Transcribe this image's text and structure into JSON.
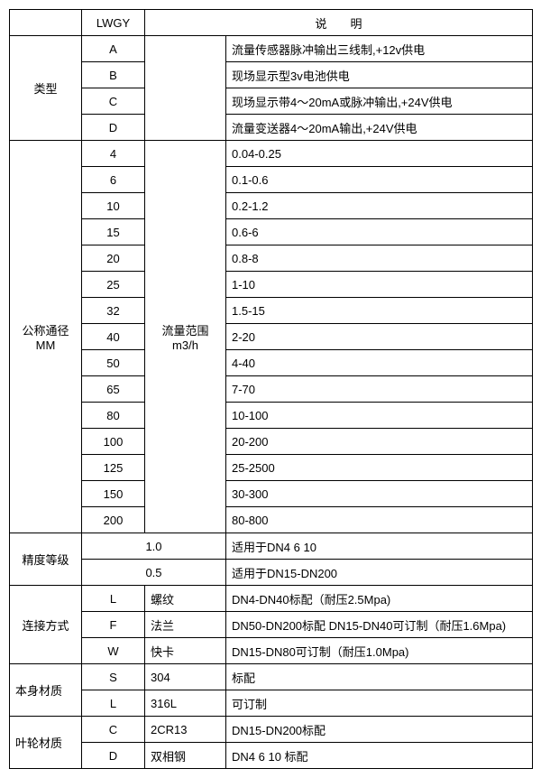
{
  "header": {
    "col2": "LWGY",
    "col3_4": "说  明"
  },
  "type": {
    "label": "类型",
    "rows": [
      {
        "code": "A",
        "desc": "流量传感器脉冲输出三线制,+12v供电"
      },
      {
        "code": "B",
        "desc": "现场显示型3v电池供电"
      },
      {
        "code": "C",
        "desc": "现场显示带4～20mA或脉冲输出,+24V供电"
      },
      {
        "code": "D",
        "desc": "流量变送器4～20mA输出,+24V供电"
      }
    ]
  },
  "dn": {
    "label_l1": "公称通径",
    "label_l2": "MM",
    "range_l1": "流量范围",
    "range_l2": "m3/h",
    "rows": [
      {
        "dn": "4",
        "r": "0.04-0.25"
      },
      {
        "dn": "6",
        "r": "0.1-0.6"
      },
      {
        "dn": "10",
        "r": "0.2-1.2"
      },
      {
        "dn": "15",
        "r": "0.6-6"
      },
      {
        "dn": "20",
        "r": "0.8-8"
      },
      {
        "dn": "25",
        "r": "1-10"
      },
      {
        "dn": "32",
        "r": "1.5-15"
      },
      {
        "dn": "40",
        "r": "2-20"
      },
      {
        "dn": "50",
        "r": "4-40"
      },
      {
        "dn": "65",
        "r": "7-70"
      },
      {
        "dn": "80",
        "r": "10-100"
      },
      {
        "dn": "100",
        "r": "20-200"
      },
      {
        "dn": "125",
        "r": "25-2500"
      },
      {
        "dn": "150",
        "r": "30-300"
      },
      {
        "dn": "200",
        "r": "80-800"
      }
    ]
  },
  "accuracy": {
    "label": "精度等级",
    "rows": [
      {
        "val": "1.0",
        "desc": "适用于DN4  6  10"
      },
      {
        "val": "0.5",
        "desc": "适用于DN15-DN200"
      }
    ]
  },
  "conn": {
    "label": "连接方式",
    "rows": [
      {
        "code": "L",
        "name": "螺纹",
        "desc": "DN4-DN40标配（耐压2.5Mpa)"
      },
      {
        "code": "F",
        "name": "法兰",
        "desc": "DN50-DN200标配 DN15-DN40可订制（耐压1.6Mpa)"
      },
      {
        "code": "W",
        "name": "快卡",
        "desc": "DN15-DN80可订制（耐压1.0Mpa)"
      }
    ]
  },
  "body": {
    "label": "本身材质",
    "rows": [
      {
        "code": "S",
        "name": "304",
        "desc": "标配"
      },
      {
        "code": "L",
        "name": "316L",
        "desc": "可订制"
      }
    ]
  },
  "impeller": {
    "label": "叶轮材质",
    "rows": [
      {
        "code": "C",
        "name": "2CR13",
        "desc": "DN15-DN200标配"
      },
      {
        "code": "D",
        "name": "双相钢",
        "desc": "DN4 6 10 标配"
      }
    ]
  }
}
